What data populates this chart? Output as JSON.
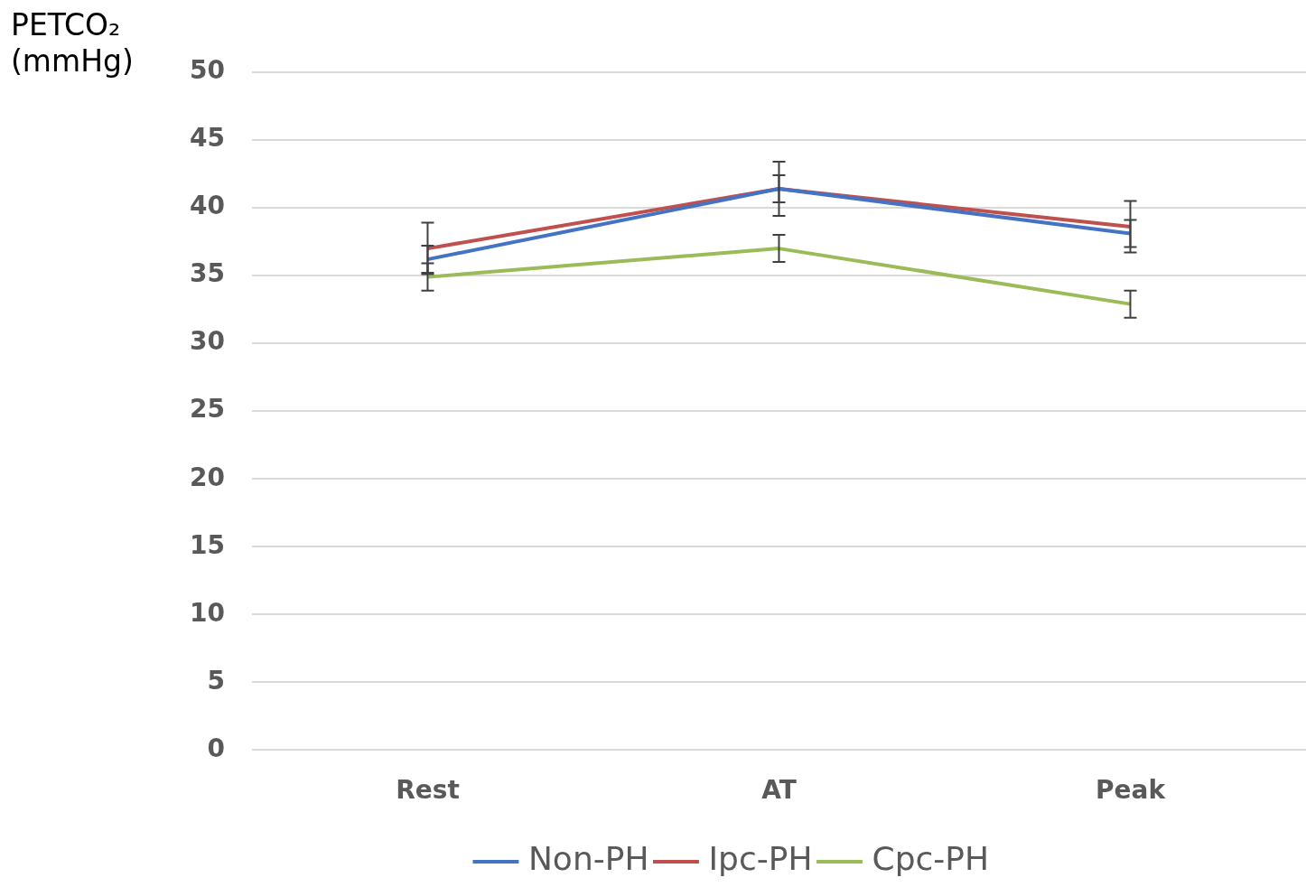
{
  "chart_data": {
    "type": "line",
    "ylabel": "PETCO₂ (mmHg)",
    "categories": [
      "Rest",
      "AT",
      "Peak"
    ],
    "series": [
      {
        "name": "Non-PH",
        "color": "#4472c4",
        "values": [
          36.2,
          41.4,
          38.1
        ],
        "errors": [
          1,
          1,
          1
        ]
      },
      {
        "name": "Ipc-PH",
        "color": "#c0504d",
        "values": [
          37.0,
          41.4,
          38.6
        ],
        "errors": [
          1.9,
          2,
          1.9
        ]
      },
      {
        "name": "Cpc-PH",
        "color": "#9bbb59",
        "values": [
          34.9,
          37.0,
          32.9
        ],
        "errors": [
          1,
          1,
          1
        ]
      }
    ],
    "ylim": [
      0,
      50
    ],
    "yticks": [
      0,
      5,
      10,
      15,
      20,
      25,
      30,
      35,
      40,
      45,
      50
    ],
    "grid": "y",
    "legend": "bottom",
    "marker": "none",
    "line_style": "solid"
  }
}
